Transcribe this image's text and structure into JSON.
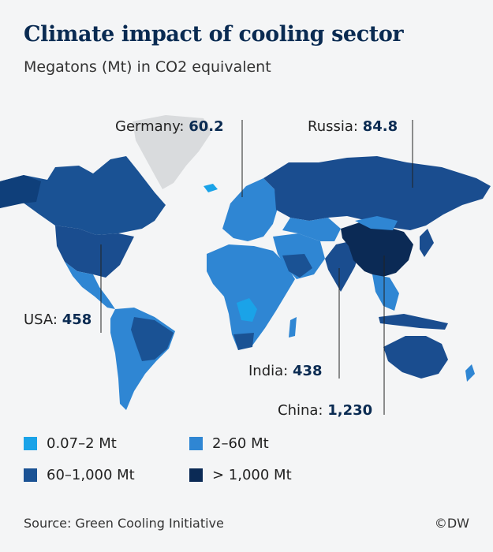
{
  "title": "Climate impact of cooling sector",
  "subtitle": "Megatons (Mt) in CO2 equivalent",
  "callouts": {
    "germany": {
      "label": "Germany: ",
      "value": "60.2"
    },
    "russia": {
      "label": "Russia: ",
      "value": "84.8"
    },
    "usa": {
      "label": "USA: ",
      "value": "458"
    },
    "india": {
      "label": "India: ",
      "value": "438"
    },
    "china": {
      "label": "China: ",
      "value": "1,230"
    }
  },
  "legend": [
    {
      "label": "0.07–2 Mt",
      "color": "#1aa3e8"
    },
    {
      "label": "2–60 Mt",
      "color": "#2f86d3"
    },
    {
      "label": "60–1,000 Mt",
      "color": "#1a5294"
    },
    {
      "label": "> 1,000 Mt",
      "color": "#0b2a55"
    }
  ],
  "colors": {
    "no_data": "#d9dbdd",
    "title": "#0a2b52"
  },
  "source": "Source: Green Cooling Initiative",
  "credit": "©DW"
}
